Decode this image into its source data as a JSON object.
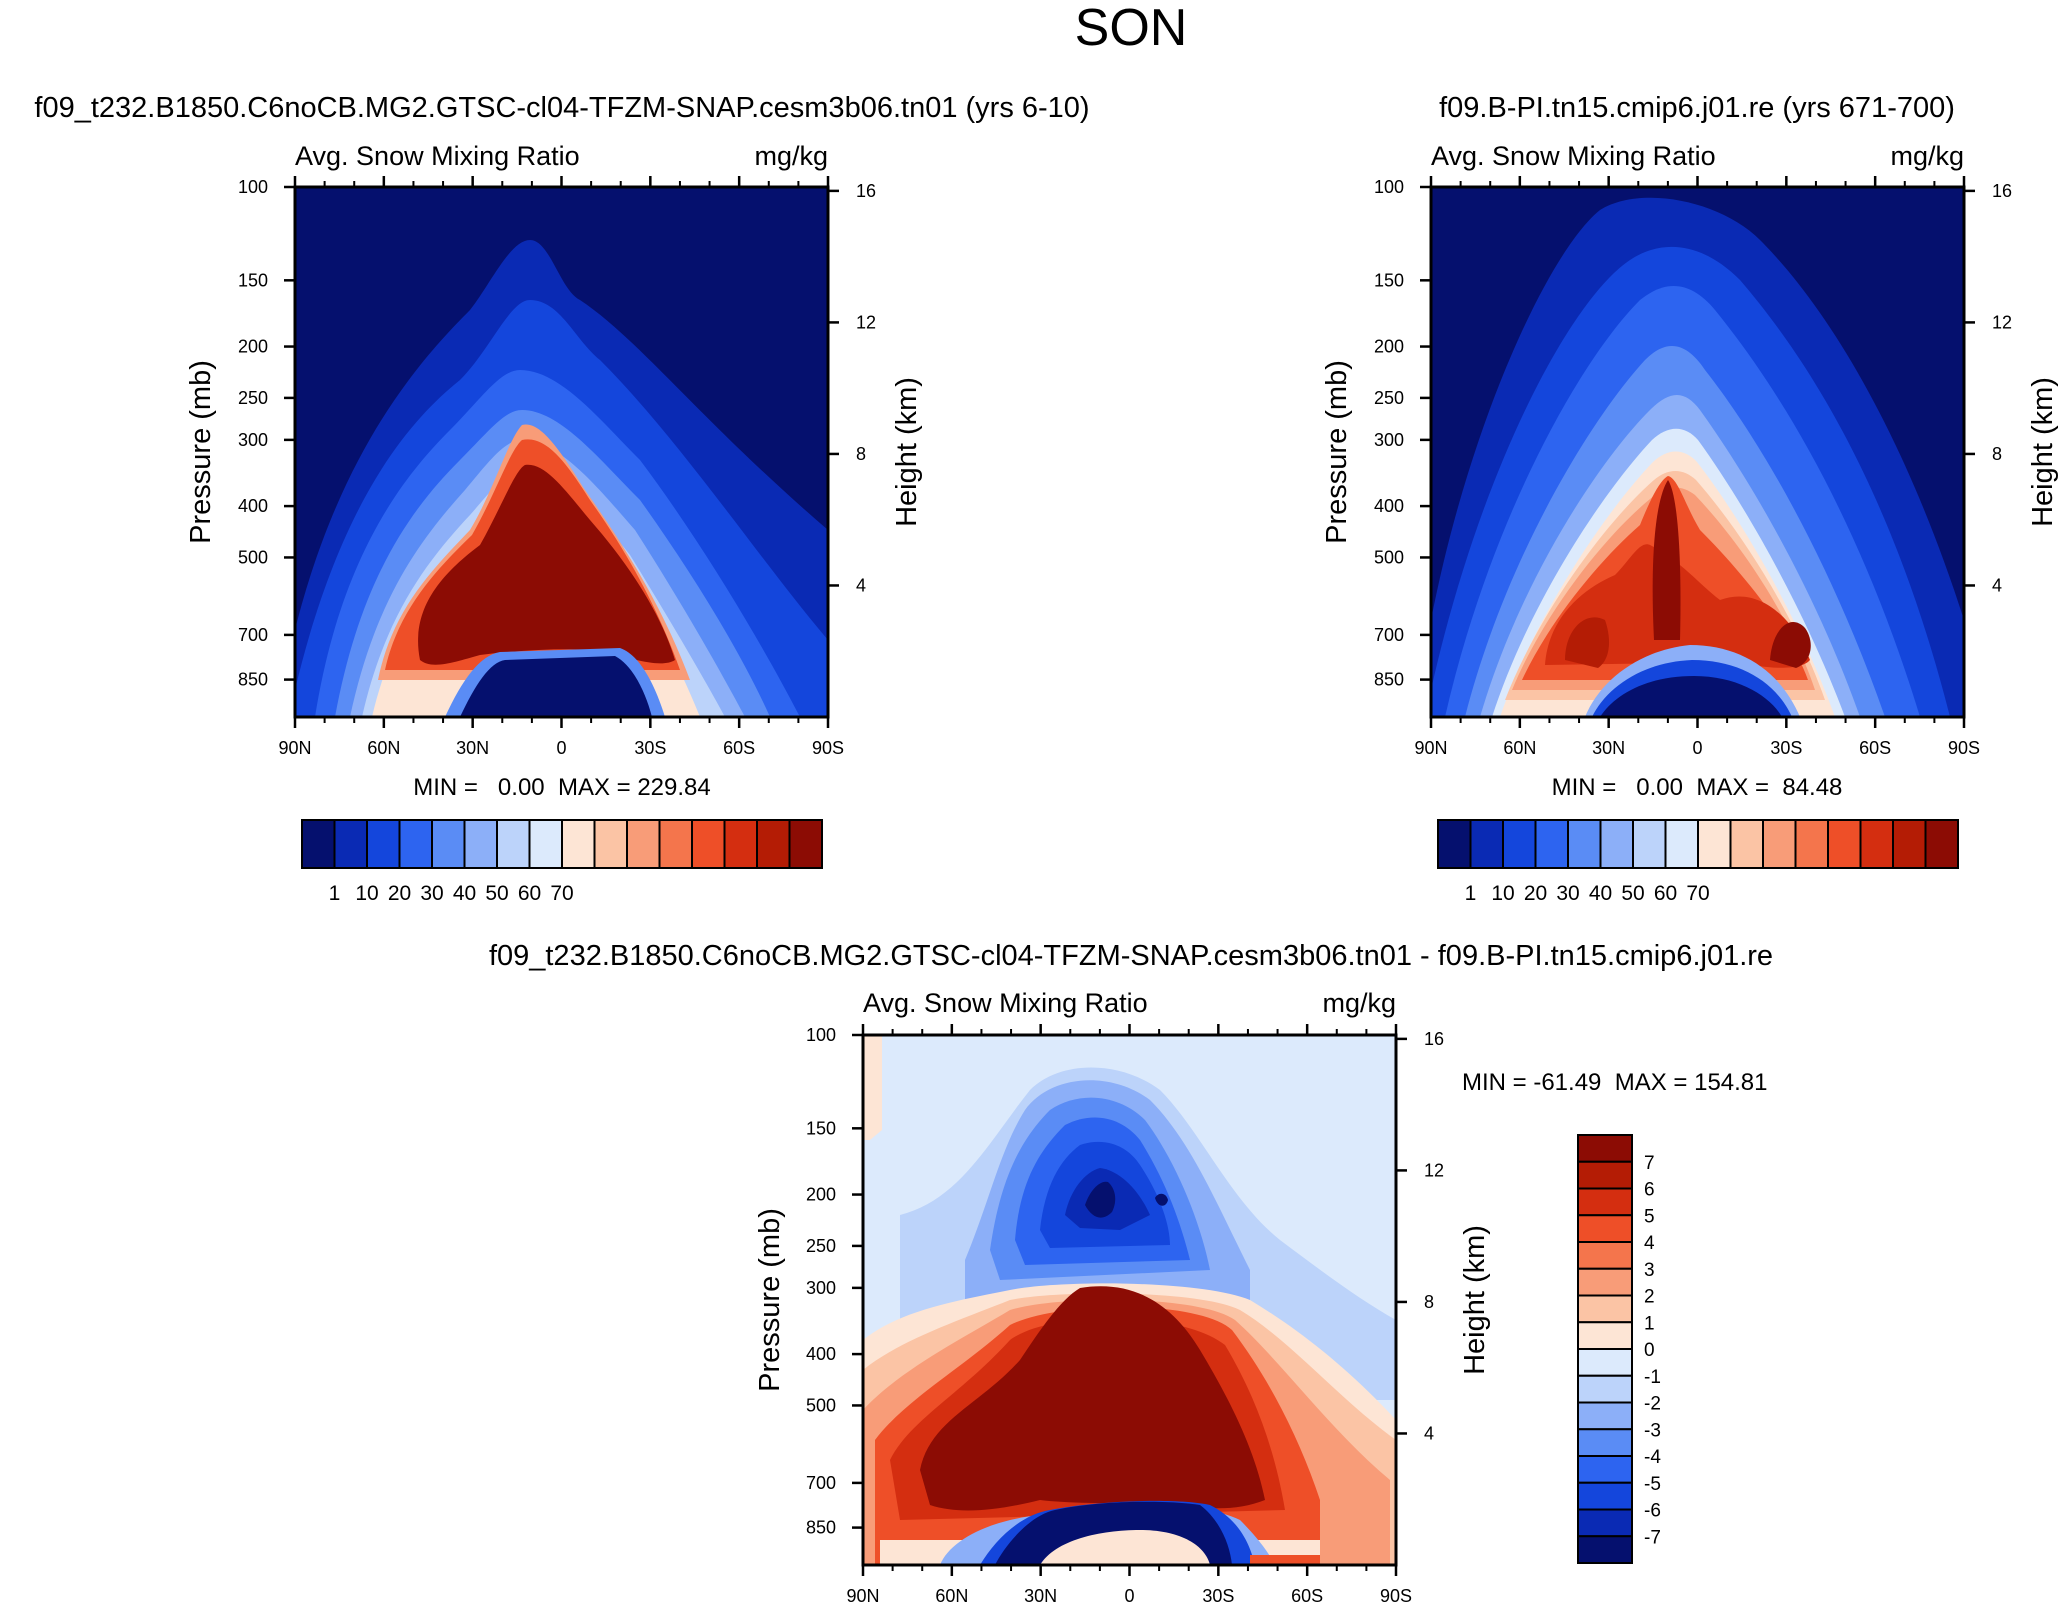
{
  "page": {
    "title": "SON"
  },
  "chart_data": [
    {
      "type": "heatmap",
      "id": "p1",
      "case_title": "f09_t232.B1850.C6noCB.MG2.GTSC-cl04-TFZM-SNAP.cesm3b06.tn01 (yrs 6-10)",
      "title": "Avg. Snow Mixing Ratio",
      "units": "mg/kg",
      "xlabel": "",
      "ylabel": "Pressure (mb)",
      "y2label": "Height (km)",
      "x_ticks": [
        "90N",
        "60N",
        "30N",
        "0",
        "30S",
        "60S",
        "90S"
      ],
      "x_tick_values": [
        90,
        60,
        30,
        0,
        -30,
        -60,
        -90
      ],
      "y_ticks": [
        100,
        150,
        200,
        250,
        300,
        400,
        500,
        700,
        850
      ],
      "y_range": [
        100,
        1000
      ],
      "y2_ticks": [
        16,
        12,
        8,
        4
      ],
      "stats": "MIN =   0.00  MAX = 229.84",
      "min": 0.0,
      "max": 229.84,
      "colorbar_orientation": "horizontal",
      "colorbar_labels": [
        "1",
        "10",
        "20",
        "30",
        "40",
        "50",
        "60",
        "70"
      ],
      "colorbar_colors": [
        "#05106e",
        "#0a2ab4",
        "#1446dc",
        "#2d64f0",
        "#5a8cf5",
        "#8caff8",
        "#bcd3fa",
        "#dceafc",
        "#fde5d5",
        "#fbc4a5",
        "#f89c78",
        "#f4754c",
        "#ee4f28",
        "#d42e10",
        "#b41c05",
        "#8c0c04"
      ]
    },
    {
      "type": "heatmap",
      "id": "p2",
      "case_title": "f09.B-PI.tn15.cmip6.j01.re (yrs 671-700)",
      "title": "Avg. Snow Mixing Ratio",
      "units": "mg/kg",
      "xlabel": "",
      "ylabel": "Pressure (mb)",
      "y2label": "Height (km)",
      "x_ticks": [
        "90N",
        "60N",
        "30N",
        "0",
        "30S",
        "60S",
        "90S"
      ],
      "x_tick_values": [
        90,
        60,
        30,
        0,
        -30,
        -60,
        -90
      ],
      "y_ticks": [
        100,
        150,
        200,
        250,
        300,
        400,
        500,
        700,
        850
      ],
      "y_range": [
        100,
        1000
      ],
      "y2_ticks": [
        16,
        12,
        8,
        4
      ],
      "stats": "MIN =   0.00  MAX =  84.48",
      "min": 0.0,
      "max": 84.48,
      "colorbar_orientation": "horizontal",
      "colorbar_labels": [
        "1",
        "10",
        "20",
        "30",
        "40",
        "50",
        "60",
        "70"
      ],
      "colorbar_colors": [
        "#05106e",
        "#0a2ab4",
        "#1446dc",
        "#2d64f0",
        "#5a8cf5",
        "#8caff8",
        "#bcd3fa",
        "#dceafc",
        "#fde5d5",
        "#fbc4a5",
        "#f89c78",
        "#f4754c",
        "#ee4f28",
        "#d42e10",
        "#b41c05",
        "#8c0c04"
      ]
    },
    {
      "type": "heatmap",
      "id": "p3",
      "case_title": "f09_t232.B1850.C6noCB.MG2.GTSC-cl04-TFZM-SNAP.cesm3b06.tn01 - f09.B-PI.tn15.cmip6.j01.re",
      "title": "Avg. Snow Mixing Ratio",
      "units": "mg/kg",
      "xlabel": "",
      "ylabel": "Pressure (mb)",
      "y2label": "Height (km)",
      "x_ticks": [
        "90N",
        "60N",
        "30N",
        "0",
        "30S",
        "60S",
        "90S"
      ],
      "x_tick_values": [
        90,
        60,
        30,
        0,
        -30,
        -60,
        -90
      ],
      "y_ticks": [
        100,
        150,
        200,
        250,
        300,
        400,
        500,
        700,
        850
      ],
      "y_range": [
        100,
        1000
      ],
      "y2_ticks": [
        16,
        12,
        8,
        4
      ],
      "stats": "MIN = -61.49  MAX = 154.81",
      "min": -61.49,
      "max": 154.81,
      "colorbar_orientation": "vertical",
      "colorbar_labels": [
        "7",
        "6",
        "5",
        "4",
        "3",
        "2",
        "1",
        "0",
        "-1",
        "-2",
        "-3",
        "-4",
        "-5",
        "-6",
        "-7"
      ],
      "colorbar_colors": [
        "#8c0c04",
        "#b41c05",
        "#d42e10",
        "#ee4f28",
        "#f4754c",
        "#f89c78",
        "#fbc4a5",
        "#fde5d5",
        "#dceafc",
        "#bcd3fa",
        "#8caff8",
        "#5a8cf5",
        "#2d64f0",
        "#1446dc",
        "#0a2ab4",
        "#05106e"
      ]
    }
  ]
}
